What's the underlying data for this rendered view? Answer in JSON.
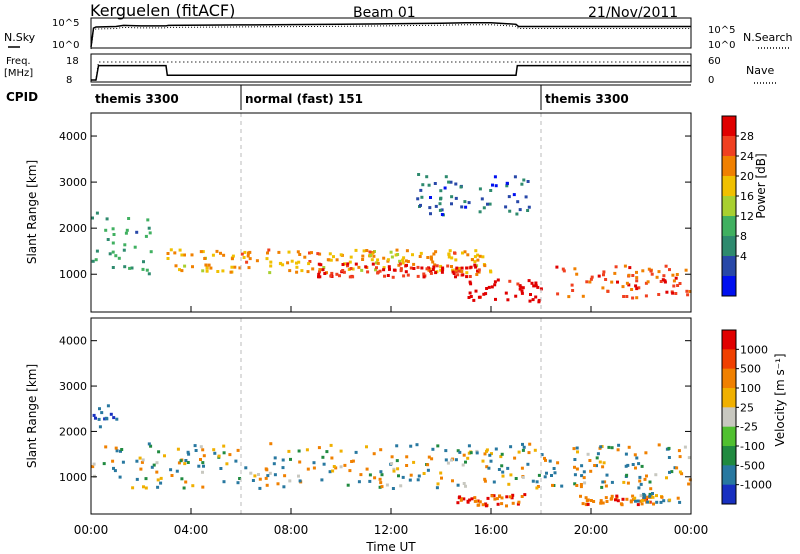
{
  "header": {
    "station": "Kerguelen (fitACF)",
    "beam": "Beam 01",
    "date": "21/Nov/2011"
  },
  "noise_panel": {
    "left_label": "N.Sky",
    "right_label": "N.Search",
    "left_ticks": [
      "10^5",
      "10^0"
    ],
    "right_ticks": [
      "10^5",
      "10^0"
    ]
  },
  "freq_panel": {
    "left_label_1": "Freq.",
    "left_label_2": "[MHz]",
    "right_label": "Nave",
    "left_ticks": [
      "18",
      "8"
    ],
    "right_ticks": [
      "60",
      "0"
    ]
  },
  "cpid": {
    "label": "CPID",
    "segments": [
      {
        "name": "themis 3300",
        "start": 0.0,
        "end": 6.0
      },
      {
        "name": "normal (fast) 151",
        "start": 6.0,
        "end": 18.0
      },
      {
        "name": "themis 3300",
        "start": 18.0,
        "end": 24.0
      }
    ]
  },
  "x_axis": {
    "label": "Time UT",
    "ticks": [
      "00:00",
      "04:00",
      "08:00",
      "12:00",
      "16:00",
      "20:00",
      "00:00"
    ]
  },
  "power_panel": {
    "ylabel": "Slant Range [km]",
    "yticks": [
      "4000",
      "3000",
      "2000",
      "1000"
    ],
    "colorbar_label": "Power [dB]",
    "colorbar_ticks": [
      "28",
      "24",
      "20",
      "16",
      "12",
      "8",
      "4"
    ],
    "colors": [
      "#0010f0",
      "#2848a8",
      "#2e8a6e",
      "#40b060",
      "#a8d030",
      "#f0c000",
      "#f08000",
      "#f04020",
      "#e00000"
    ]
  },
  "velocity_panel": {
    "ylabel": "Slant Range [km]",
    "yticks": [
      "4000",
      "3000",
      "2000",
      "1000"
    ],
    "colorbar_label": "Velocity [m s⁻¹]",
    "colorbar_ticks": [
      "1000",
      "500",
      "100",
      "25",
      "-25",
      "-100",
      "-500",
      "-1000"
    ],
    "colors": [
      "#1830c0",
      "#2878a0",
      "#208a40",
      "#50c030",
      "#c8c8c0",
      "#f0b000",
      "#f08000",
      "#f04000",
      "#e00000"
    ]
  },
  "chart_data": [
    {
      "type": "line",
      "title": "N.Sky",
      "x": [
        0,
        0.1,
        0.2,
        1.0,
        1.3,
        2.0,
        3.0,
        3.1,
        6.0,
        10.0,
        12.0,
        14.0,
        15.0,
        16.0,
        17.0,
        17.1,
        24.0
      ],
      "y_log10": [
        0.0,
        3.5,
        3.7,
        3.8,
        4.0,
        3.9,
        3.9,
        4.0,
        4.1,
        4.2,
        4.3,
        4.4,
        4.5,
        4.5,
        4.2,
        3.8,
        3.8
      ],
      "ylim_log10": [
        0,
        5
      ]
    },
    {
      "type": "line",
      "title": "Freq.",
      "x": [
        0,
        0.2,
        0.3,
        3.0,
        3.05,
        17.0,
        17.05,
        24.0
      ],
      "series": [
        {
          "name": "Freq.",
          "values": [
            8,
            8,
            14,
            14,
            10,
            10,
            14,
            14
          ]
        },
        {
          "name": "Nave",
          "values": [
            0,
            0,
            45,
            45,
            45,
            45,
            45,
            45
          ]
        }
      ],
      "ylim": [
        8,
        18
      ]
    },
    {
      "type": "heatmap",
      "title": "Power [dB]",
      "xlabel": "Time UT",
      "ylabel": "Slant Range [km]",
      "xlim": [
        0,
        24
      ],
      "ylim": [
        180,
        4500
      ],
      "clim": [
        0,
        30
      ],
      "features": [
        {
          "t_start": 0.0,
          "t_end": 2.5,
          "r_center": 1600,
          "r_width": 1400,
          "level": 10
        },
        {
          "t_start": 3.0,
          "t_end": 16.0,
          "r_center": 1250,
          "r_width": 500,
          "level": 20
        },
        {
          "t_start": 9.0,
          "t_end": 15.5,
          "r_center": 1050,
          "r_width": 300,
          "level": 27
        },
        {
          "t_start": 15.0,
          "t_end": 18.0,
          "r_center": 600,
          "r_width": 500,
          "level": 30
        },
        {
          "t_start": 18.5,
          "t_end": 24.0,
          "r_center": 800,
          "r_width": 700,
          "level": 24
        },
        {
          "t_start": 13.0,
          "t_end": 17.5,
          "r_center": 2700,
          "r_width": 900,
          "level": 6
        }
      ]
    },
    {
      "type": "heatmap",
      "title": "Velocity [m s⁻¹]",
      "xlabel": "Time UT",
      "ylabel": "Slant Range [km]",
      "xlim": [
        0,
        24
      ],
      "ylim": [
        180,
        4500
      ],
      "clim": [
        -1000,
        1000
      ],
      "features": [
        {
          "t_start": 0.0,
          "t_end": 24.0,
          "r_center": 1200,
          "r_width": 1000,
          "level": 0
        },
        {
          "t_start": 0.0,
          "t_end": 1.0,
          "r_center": 2300,
          "r_width": 500,
          "level": 500
        },
        {
          "t_start": 14.5,
          "t_end": 17.5,
          "r_center": 450,
          "r_width": 250,
          "level": -500
        },
        {
          "t_start": 19.5,
          "t_end": 22.5,
          "r_center": 450,
          "r_width": 200,
          "level": -400
        },
        {
          "t_start": 21.5,
          "t_end": 23.5,
          "r_center": 500,
          "r_width": 200,
          "level": 100
        }
      ]
    }
  ]
}
